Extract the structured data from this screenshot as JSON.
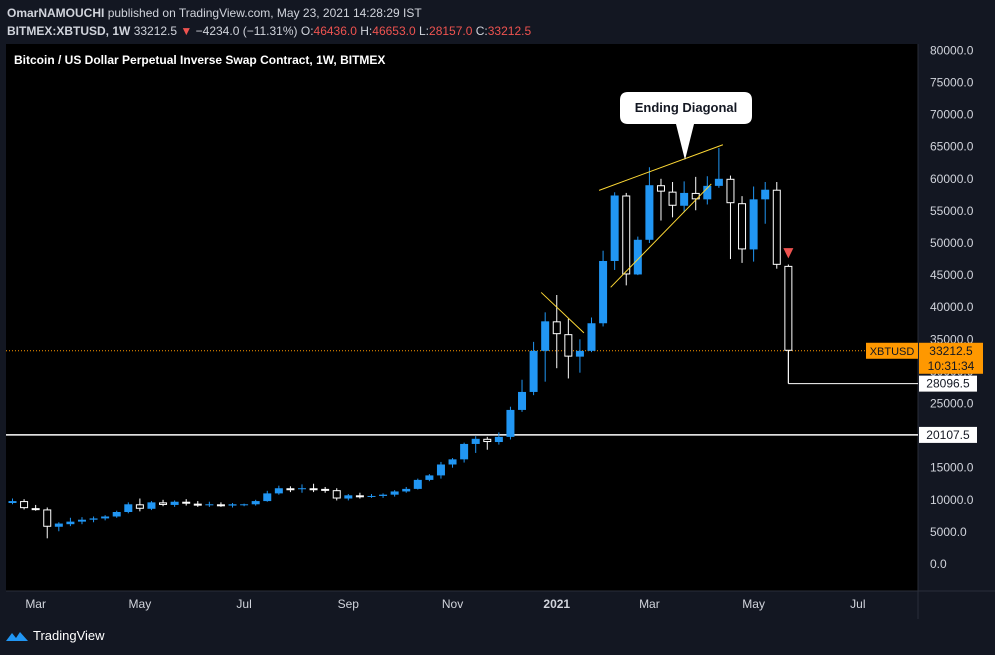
{
  "header": {
    "author": "OmarNAMOUCHI",
    "published_text": "published on TradingView.com, May 23, 2021 14:28:29 IST",
    "symbol": "BITMEX:XBTUSD, 1W",
    "last": "33212.5",
    "change_arrow": "▼",
    "change": "−4234.0 (−11.31%)",
    "o_label": "O:",
    "o_value": "46436.0",
    "h_label": "H:",
    "h_value": "46653.0",
    "l_label": "L:",
    "l_value": "28157.0",
    "c_label": "C:",
    "c_value": "33212.5"
  },
  "footer": {
    "brand": "TradingView"
  },
  "colors": {
    "up": "#2196f3",
    "down": "#ffffff",
    "background": "#131722",
    "price_tag": "#ff9800",
    "pattern": "#fdd835"
  },
  "chart_data": {
    "type": "candlestick",
    "title": "Bitcoin / US Dollar Perpetual Inverse Swap Contract, 1W, BITMEX",
    "y_axis": {
      "min": -2500,
      "max": 82500,
      "ticks": [
        0,
        5000,
        10000,
        15000,
        20000,
        25000,
        30000,
        35000,
        40000,
        45000,
        50000,
        55000,
        60000,
        65000,
        70000,
        75000,
        80000
      ],
      "tick_labels": [
        "0.0",
        "5000.0",
        "10000.0",
        "15000.0",
        "20000.0",
        "25000.0",
        "30000.0",
        "35000.0",
        "40000.0",
        "45000.0",
        "50000.0",
        "55000.0",
        "60000.0",
        "65000.0",
        "70000.0",
        "75000.0",
        "80000.0"
      ]
    },
    "x_axis": {
      "labels": [
        {
          "i": 2,
          "label": "Mar",
          "bold": false
        },
        {
          "i": 11,
          "label": "May",
          "bold": false
        },
        {
          "i": 20,
          "label": "Jul",
          "bold": false
        },
        {
          "i": 29,
          "label": "Sep",
          "bold": false
        },
        {
          "i": 38,
          "label": "Nov",
          "bold": false
        },
        {
          "i": 47,
          "label": "2021",
          "bold": true
        },
        {
          "i": 55,
          "label": "Mar",
          "bold": false
        },
        {
          "i": 64,
          "label": "May",
          "bold": false
        },
        {
          "i": 73,
          "label": "Jul",
          "bold": false
        }
      ]
    },
    "candles": [
      [
        9500,
        10200,
        9300,
        9800
      ],
      [
        9800,
        10100,
        8500,
        8700
      ],
      [
        8700,
        9200,
        8300,
        8500
      ],
      [
        8500,
        8800,
        4000,
        5800
      ],
      [
        5800,
        6500,
        5100,
        6300
      ],
      [
        6200,
        7200,
        5900,
        6600
      ],
      [
        6600,
        7300,
        6200,
        6900
      ],
      [
        6900,
        7400,
        6500,
        7100
      ],
      [
        7100,
        7600,
        6800,
        7400
      ],
      [
        7400,
        8300,
        7200,
        8100
      ],
      [
        8100,
        9600,
        7900,
        9300
      ],
      [
        9300,
        10200,
        8200,
        8600
      ],
      [
        8600,
        9800,
        8400,
        9600
      ],
      [
        9600,
        10000,
        9000,
        9200
      ],
      [
        9200,
        9900,
        8900,
        9700
      ],
      [
        9700,
        10100,
        9100,
        9400
      ],
      [
        9400,
        9800,
        8900,
        9200
      ],
      [
        9200,
        9700,
        8900,
        9300
      ],
      [
        9300,
        9600,
        8900,
        9100
      ],
      [
        9100,
        9500,
        8800,
        9300
      ],
      [
        9200,
        9400,
        9000,
        9300
      ],
      [
        9300,
        10000,
        9100,
        9800
      ],
      [
        9800,
        11400,
        9700,
        11000
      ],
      [
        11000,
        12200,
        10800,
        11800
      ],
      [
        11800,
        12100,
        11200,
        11700
      ],
      [
        11700,
        12400,
        11100,
        11800
      ],
      [
        11800,
        12500,
        11200,
        11700
      ],
      [
        11700,
        12000,
        11100,
        11500
      ],
      [
        11500,
        11800,
        9900,
        10200
      ],
      [
        10200,
        10900,
        9900,
        10700
      ],
      [
        10700,
        11100,
        10200,
        10500
      ],
      [
        10500,
        10900,
        10300,
        10600
      ],
      [
        10600,
        11000,
        10300,
        10800
      ],
      [
        10800,
        11500,
        10500,
        11300
      ],
      [
        11300,
        12000,
        11100,
        11700
      ],
      [
        11700,
        13300,
        11600,
        13100
      ],
      [
        13100,
        14000,
        12900,
        13800
      ],
      [
        13800,
        15900,
        13300,
        15500
      ],
      [
        15500,
        16500,
        15000,
        16300
      ],
      [
        16300,
        18900,
        15800,
        18700
      ],
      [
        18700,
        19900,
        17300,
        19500
      ],
      [
        19500,
        19800,
        17800,
        19000
      ],
      [
        19000,
        20500,
        18600,
        19800
      ],
      [
        19800,
        24500,
        19400,
        24000
      ],
      [
        24000,
        28700,
        23700,
        26800
      ],
      [
        26800,
        34600,
        26300,
        33200
      ],
      [
        33200,
        39200,
        28400,
        37800
      ],
      [
        37800,
        41900,
        30500,
        35800
      ],
      [
        35800,
        38200,
        28900,
        32300
      ],
      [
        32300,
        35000,
        29800,
        33200
      ],
      [
        33200,
        38400,
        33000,
        37500
      ],
      [
        37500,
        48800,
        37000,
        47200
      ],
      [
        47200,
        57900,
        45800,
        57400
      ],
      [
        57400,
        57800,
        43400,
        45100
      ],
      [
        45100,
        51000,
        45000,
        50500
      ],
      [
        50500,
        61800,
        50000,
        59000
      ],
      [
        59000,
        60000,
        53500,
        58000
      ],
      [
        58000,
        59500,
        54000,
        55800
      ],
      [
        55800,
        59600,
        54800,
        57800
      ],
      [
        57800,
        60300,
        55100,
        56800
      ],
      [
        56800,
        60400,
        56000,
        58900
      ],
      [
        58900,
        64800,
        58600,
        60000
      ],
      [
        60000,
        60500,
        47500,
        56200
      ],
      [
        56200,
        57300,
        46900,
        49000
      ],
      [
        49000,
        58800,
        47100,
        56800
      ],
      [
        56800,
        59500,
        53000,
        58300
      ],
      [
        58300,
        59500,
        46000,
        46600
      ],
      [
        46436,
        46653,
        28157,
        33212.5
      ]
    ],
    "current_price": {
      "value": 33212.5,
      "label": "XBTUSD",
      "value_label": "33212.5",
      "countdown": "10:31:34"
    },
    "levels": [
      {
        "value": 28096.5,
        "label": "28096.5"
      },
      {
        "value": 20107.5,
        "label": "20107.5"
      }
    ],
    "annotation": {
      "text": "Ending Diagonal"
    },
    "pattern_lines": [
      [
        [
          51,
          58200
        ],
        [
          61,
          65300
        ]
      ],
      [
        [
          52,
          43100
        ],
        [
          60,
          59200
        ]
      ],
      [
        [
          46,
          42300
        ],
        [
          49,
          36000
        ]
      ]
    ]
  }
}
